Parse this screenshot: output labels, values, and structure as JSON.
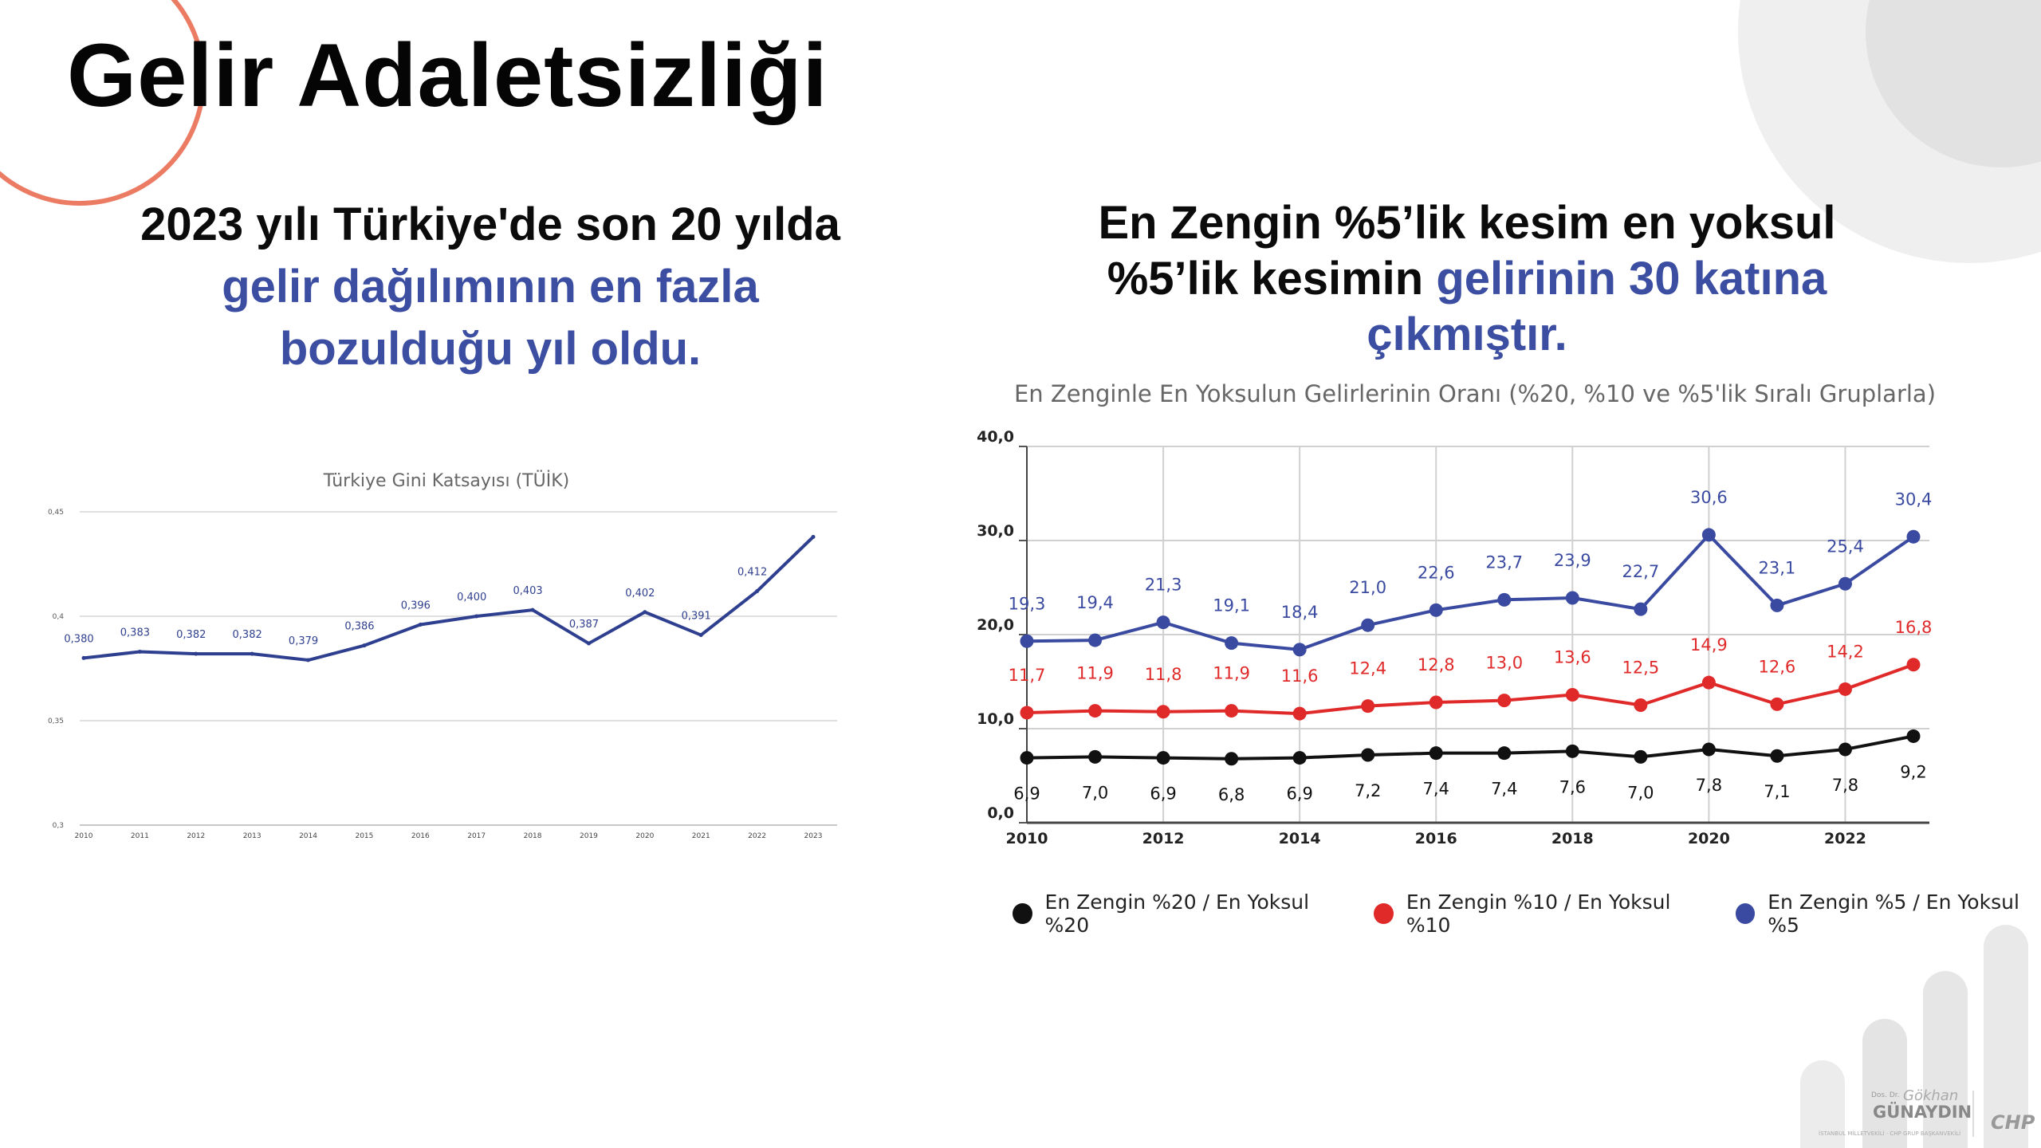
{
  "title": "Gelir Adaletsizliği",
  "left_headline": {
    "line1": "2023 yılı Türkiye'de son 20 yılda",
    "accent1": "gelir dağılımının en fazla",
    "accent2": "bozulduğu yıl oldu."
  },
  "right_headline": {
    "line1": "En Zengin %5’lik kesim en yoksul",
    "line2_plain": "%5’lik kesimin ",
    "line2_accent": "gelirinin 30 katına",
    "line3_accent": "çıkmıştır."
  },
  "colors": {
    "accent": "#3b4ea1",
    "black_series": "#111111",
    "red_series": "#e02a2a",
    "blue_series": "#3a4aa0",
    "decor_circle": "#ec7b64"
  },
  "chart_data": [
    {
      "type": "line",
      "title": "Türkiye Gini Katsayısı (TÜİK)",
      "x": [
        "2010",
        "2011",
        "2012",
        "2013",
        "2014",
        "2015",
        "2016",
        "2017",
        "2018",
        "2019",
        "2020",
        "2021",
        "2022",
        "2023"
      ],
      "series": [
        {
          "values": [
            0.38,
            0.383,
            0.382,
            0.382,
            0.379,
            0.386,
            0.396,
            0.4,
            0.403,
            0.387,
            0.402,
            0.391,
            0.412,
            0.438
          ]
        }
      ],
      "data_labels": [
        "0,380",
        "0,383",
        "0,382",
        "0,382",
        "0,379",
        "0,386",
        "0,396",
        "0,400",
        "0,403",
        "0,387",
        "0,402",
        "0,391",
        "0,412",
        ""
      ],
      "y_ticks": [
        "0,3",
        "0,35",
        "0,4",
        "0,45"
      ],
      "ylim": [
        0.3,
        0.45
      ],
      "grid": true
    },
    {
      "type": "line",
      "title": "En Zenginle En Yoksulun Gelirlerinin Oranı (%20, %10 ve %5'lik Sıralı Gruplarla)",
      "x": [
        "2010",
        "2011",
        "2012",
        "2013",
        "2014",
        "2015",
        "2016",
        "2017",
        "2018",
        "2019",
        "2020",
        "2021",
        "2022",
        "2023"
      ],
      "x_tick_labels": [
        "2010",
        "2012",
        "2014",
        "2016",
        "2018",
        "2020",
        "2022"
      ],
      "y_ticks": [
        "0,0",
        "10,0",
        "20,0",
        "30,0",
        "40,0"
      ],
      "ylim": [
        0,
        40
      ],
      "grid": true,
      "legend_position": "bottom",
      "series": [
        {
          "name": "En Zengin %20 / En Yoksul %20",
          "color": "#111111",
          "values": [
            6.9,
            7.0,
            6.9,
            6.8,
            6.9,
            7.2,
            7.4,
            7.4,
            7.6,
            7.0,
            7.8,
            7.1,
            7.8,
            9.2
          ],
          "labels": [
            "6,9",
            "7,0",
            "6,9",
            "6,8",
            "6,9",
            "7,2",
            "7,4",
            "7,4",
            "7,6",
            "7,0",
            "7,8",
            "7,1",
            "7,8",
            "9,2"
          ]
        },
        {
          "name": "En Zengin %10 / En Yoksul %10",
          "color": "#e02a2a",
          "values": [
            11.7,
            11.9,
            11.8,
            11.9,
            11.6,
            12.4,
            12.8,
            13.0,
            13.6,
            12.5,
            14.9,
            12.6,
            14.2,
            16.8
          ],
          "labels": [
            "11,7",
            "11,9",
            "11,8",
            "11,9",
            "11,6",
            "12,4",
            "12,8",
            "13,0",
            "13,6",
            "12,5",
            "14,9",
            "12,6",
            "14,2",
            "16,8"
          ]
        },
        {
          "name": "En Zengin %5 / En Yoksul %5",
          "color": "#3a4aa0",
          "values": [
            19.3,
            19.4,
            21.3,
            19.1,
            18.4,
            21.0,
            22.6,
            23.7,
            23.9,
            22.7,
            30.6,
            23.1,
            25.4,
            30.4
          ],
          "labels": [
            "19,3",
            "19,4",
            "21,3",
            "19,1",
            "18,4",
            "21,0",
            "22,6",
            "23,7",
            "23,9",
            "22,7",
            "30,6",
            "23,1",
            "25,4",
            "30,4"
          ]
        }
      ]
    }
  ],
  "logo": {
    "name_small": "Dos. Dr.",
    "signature": "Gökhan",
    "name": "GÜNAYDIN",
    "subtitle": "İSTANBUL MİLLETVEKİLİ · CHP GRUP BAŞKANVEKİLİ",
    "party": "CHP"
  }
}
